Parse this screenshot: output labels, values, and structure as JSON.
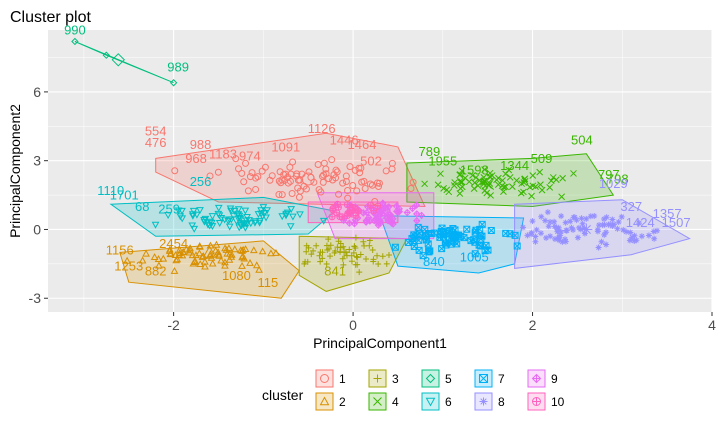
{
  "chart_data": {
    "type": "scatter",
    "title": "Cluster plot",
    "xlabel": "PrincipalComponent1",
    "ylabel": "PrincipalComponent2",
    "xlim": [
      -3.4,
      4.0
    ],
    "ylim": [
      -3.6,
      8.7
    ],
    "xticks": [
      -2,
      0,
      2,
      4
    ],
    "yticks": [
      -3,
      0,
      3,
      6
    ],
    "xtick_labels": [
      "-2",
      "0",
      "2",
      "4"
    ],
    "ytick_labels": [
      "-3",
      "0",
      "3",
      "6"
    ],
    "grid": true,
    "legend": {
      "title": "cluster",
      "placement": "bottom",
      "items": [
        {
          "label": "1",
          "color": "#F8766D",
          "shape": "circle"
        },
        {
          "label": "2",
          "color": "#D89000",
          "shape": "triangle"
        },
        {
          "label": "3",
          "color": "#A3A500",
          "shape": "plus"
        },
        {
          "label": "4",
          "color": "#39B600",
          "shape": "cross"
        },
        {
          "label": "5",
          "color": "#00BF7D",
          "shape": "diamond"
        },
        {
          "label": "6",
          "color": "#00BFC4",
          "shape": "triangle-down"
        },
        {
          "label": "7",
          "color": "#00B0F6",
          "shape": "square-cross"
        },
        {
          "label": "8",
          "color": "#9590FF",
          "shape": "star"
        },
        {
          "label": "9",
          "color": "#E76BF3",
          "shape": "diamond-plus"
        },
        {
          "label": "10",
          "color": "#FF62BC",
          "shape": "circle-plus"
        }
      ]
    },
    "clusters": [
      {
        "id": "1",
        "color": "#F8766D",
        "hull": [
          [
            -2.2,
            3.1
          ],
          [
            -0.3,
            4.2
          ],
          [
            0.5,
            3.6
          ],
          [
            0.8,
            1.0
          ],
          [
            -1.5,
            1.2
          ],
          [
            -2.2,
            2.5
          ]
        ],
        "center": [
          -0.5,
          2.2
        ],
        "spread": [
          0.8,
          0.55
        ],
        "n": 90,
        "labels": [
          {
            "text": "1126",
            "x": -0.35,
            "y": 4.2
          },
          {
            "text": "554",
            "x": -2.2,
            "y": 4.1
          },
          {
            "text": "476",
            "x": -2.2,
            "y": 3.6
          },
          {
            "text": "988",
            "x": -1.7,
            "y": 3.5
          },
          {
            "text": "968",
            "x": -1.75,
            "y": 2.9
          },
          {
            "text": "1091",
            "x": -0.75,
            "y": 3.4
          },
          {
            "text": "974",
            "x": -1.15,
            "y": 3.0
          },
          {
            "text": "1183",
            "x": -1.45,
            "y": 3.1
          },
          {
            "text": "1446",
            "x": -0.1,
            "y": 3.7
          },
          {
            "text": "1464",
            "x": 0.1,
            "y": 3.5
          },
          {
            "text": "502",
            "x": 0.2,
            "y": 2.8
          }
        ]
      },
      {
        "id": "2",
        "color": "#D89000",
        "hull": [
          [
            -2.6,
            -1.0
          ],
          [
            -1.0,
            -0.5
          ],
          [
            -0.6,
            -1.8
          ],
          [
            -0.8,
            -3.0
          ],
          [
            -2.5,
            -2.3
          ]
        ],
        "center": [
          -1.6,
          -1.0
        ],
        "spread": [
          0.5,
          0.5
        ],
        "n": 75,
        "labels": [
          {
            "text": "1156",
            "x": -2.6,
            "y": -1.1
          },
          {
            "text": "1253",
            "x": -2.5,
            "y": -1.8
          },
          {
            "text": "882",
            "x": -2.2,
            "y": -2.0
          },
          {
            "text": "2454",
            "x": -2.0,
            "y": -0.8
          },
          {
            "text": "115",
            "x": -0.95,
            "y": -2.5
          },
          {
            "text": "1080",
            "x": -1.3,
            "y": -2.2
          }
        ]
      },
      {
        "id": "3",
        "color": "#A3A500",
        "hull": [
          [
            -0.6,
            -0.3
          ],
          [
            0.6,
            -0.4
          ],
          [
            0.4,
            -1.9
          ],
          [
            -0.3,
            -2.7
          ],
          [
            -0.6,
            -2.0
          ]
        ],
        "center": [
          -0.1,
          -1.0
        ],
        "spread": [
          0.4,
          0.5
        ],
        "n": 60,
        "labels": [
          {
            "text": "841",
            "x": -0.2,
            "y": -2.0
          }
        ]
      },
      {
        "id": "4",
        "color": "#39B600",
        "hull": [
          [
            0.6,
            2.9
          ],
          [
            2.0,
            3.1
          ],
          [
            2.6,
            3.3
          ],
          [
            2.9,
            1.5
          ],
          [
            2.0,
            1.0
          ],
          [
            0.6,
            1.2
          ]
        ],
        "center": [
          1.5,
          2.0
        ],
        "spread": [
          0.55,
          0.4
        ],
        "n": 75,
        "labels": [
          {
            "text": "504",
            "x": 2.55,
            "y": 3.7
          },
          {
            "text": "509",
            "x": 2.1,
            "y": 2.9
          },
          {
            "text": "789",
            "x": 0.85,
            "y": 3.2
          },
          {
            "text": "1955",
            "x": 1.0,
            "y": 2.8
          },
          {
            "text": "797",
            "x": 2.85,
            "y": 2.2
          },
          {
            "text": "798",
            "x": 2.95,
            "y": 2.0
          },
          {
            "text": "1344",
            "x": 1.8,
            "y": 2.6
          },
          {
            "text": "1598",
            "x": 1.35,
            "y": 2.4
          }
        ]
      },
      {
        "id": "5",
        "color": "#00BF7D",
        "hull": [
          [
            -3.1,
            8.2
          ],
          [
            -2.0,
            6.4
          ],
          [
            -2.75,
            7.6
          ]
        ],
        "center": [
          -2.6,
          7.4
        ],
        "spread": [
          0.2,
          0.3
        ],
        "n": 3,
        "labels": [
          {
            "text": "990",
            "x": -3.1,
            "y": 8.5
          },
          {
            "text": "989",
            "x": -1.95,
            "y": 6.9
          }
        ]
      },
      {
        "id": "6",
        "color": "#00BFC4",
        "hull": [
          [
            -2.7,
            1.1
          ],
          [
            -1.0,
            1.4
          ],
          [
            -0.2,
            0.8
          ],
          [
            -0.5,
            -0.2
          ],
          [
            -2.2,
            -0.3
          ]
        ],
        "center": [
          -1.3,
          0.5
        ],
        "spread": [
          0.55,
          0.35
        ],
        "n": 75,
        "labels": [
          {
            "text": "1110",
            "x": -2.7,
            "y": 1.5
          },
          {
            "text": "1701",
            "x": -2.55,
            "y": 1.3
          },
          {
            "text": "68",
            "x": -2.35,
            "y": 0.8
          },
          {
            "text": "259",
            "x": -2.05,
            "y": 0.7
          },
          {
            "text": "256",
            "x": -1.7,
            "y": 1.9
          }
        ]
      },
      {
        "id": "7",
        "color": "#00B0F6",
        "hull": [
          [
            0.3,
            0.6
          ],
          [
            1.9,
            0.5
          ],
          [
            1.8,
            -1.5
          ],
          [
            1.4,
            -1.9
          ],
          [
            0.5,
            -1.6
          ]
        ],
        "center": [
          1.1,
          -0.4
        ],
        "spread": [
          0.45,
          0.45
        ],
        "n": 75,
        "labels": [
          {
            "text": "1005",
            "x": 1.35,
            "y": -1.4
          },
          {
            "text": "840",
            "x": 0.9,
            "y": -1.6
          }
        ]
      },
      {
        "id": "8",
        "color": "#9590FF",
        "hull": [
          [
            1.8,
            1.1
          ],
          [
            3.0,
            1.3
          ],
          [
            3.75,
            -0.4
          ],
          [
            3.1,
            -1.1
          ],
          [
            1.8,
            -1.7
          ]
        ],
        "center": [
          2.6,
          0.0
        ],
        "spread": [
          0.5,
          0.6
        ],
        "n": 85,
        "labels": [
          {
            "text": "1357",
            "x": 3.5,
            "y": 0.5
          },
          {
            "text": "1424",
            "x": 3.2,
            "y": 0.1
          },
          {
            "text": "1507",
            "x": 3.6,
            "y": 0.1
          },
          {
            "text": "327",
            "x": 3.1,
            "y": 0.8
          },
          {
            "text": "1029",
            "x": 2.9,
            "y": 1.8
          }
        ]
      },
      {
        "id": "9",
        "color": "#E76BF3",
        "hull": [
          [
            -0.4,
            1.6
          ],
          [
            0.9,
            1.6
          ],
          [
            0.9,
            -0.4
          ],
          [
            -0.2,
            -0.4
          ]
        ],
        "center": [
          0.3,
          0.6
        ],
        "spread": [
          0.35,
          0.4
        ],
        "n": 60,
        "labels": []
      },
      {
        "id": "10",
        "color": "#FF62BC",
        "hull": [
          [
            -0.5,
            1.2
          ],
          [
            0.5,
            1.2
          ],
          [
            0.5,
            0.3
          ],
          [
            -0.5,
            0.3
          ]
        ],
        "center": [
          0.0,
          0.8
        ],
        "spread": [
          0.25,
          0.25
        ],
        "n": 20,
        "labels": []
      }
    ]
  }
}
